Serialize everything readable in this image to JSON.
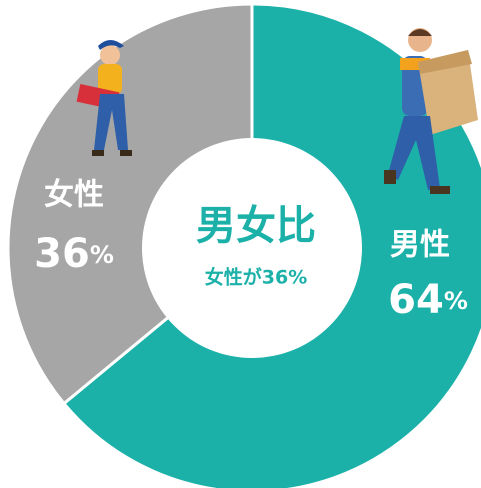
{
  "chart_data": {
    "type": "donut",
    "title": "男女比",
    "subtitle": "女性が36%",
    "categories": [
      "男性",
      "女性"
    ],
    "values": [
      64,
      36
    ],
    "value_labels": [
      "64%",
      "36%"
    ],
    "colors": [
      "#1bb1a9",
      "#a6a6a6"
    ]
  }
}
